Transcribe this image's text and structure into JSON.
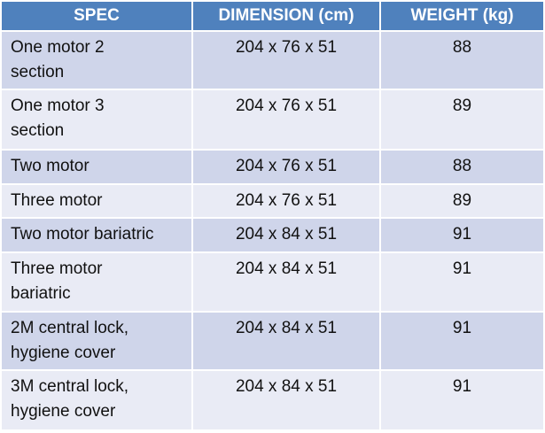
{
  "table": {
    "header": [
      "SPEC",
      "DIMENSION (cm)",
      "WEIGHT (kg)"
    ],
    "rows": [
      [
        "One motor 2\nsection",
        "204 x 76 x 51",
        "88"
      ],
      [
        "One motor 3\nsection",
        "204 x 76 x 51",
        "89"
      ],
      [
        "Two motor",
        "204 x 76 x 51",
        "88"
      ],
      [
        "Three motor",
        "204 x 76 x 51",
        "89"
      ],
      [
        "Two motor bariatric",
        "204 x 84 x 51",
        "91"
      ],
      [
        "Three motor\nbariatric",
        "204 x 84 x 51",
        "91"
      ],
      [
        "2M central lock,\nhygiene cover",
        "204 x 84 x 51",
        "91"
      ],
      [
        "3M central lock,\nhygiene cover",
        "204 x 84 x 51",
        "91"
      ]
    ]
  }
}
